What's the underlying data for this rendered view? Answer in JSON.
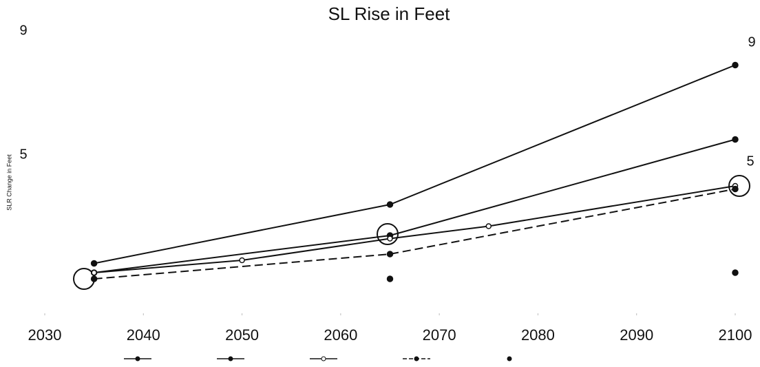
{
  "chart_data": {
    "type": "line",
    "title": "SL Rise in Feet",
    "y_label": "SLR Change in Feet",
    "xlim": [
      2030,
      2100
    ],
    "xticks": [
      2030,
      2040,
      2050,
      2060,
      2070,
      2080,
      2090,
      2100
    ],
    "ylim": [
      0,
      9
    ],
    "yticks": [
      5,
      9
    ],
    "annotations": [
      "9",
      "5"
    ],
    "series": [
      {
        "color": "#111111",
        "marker": "dot",
        "line": "solid",
        "x": [
          2035,
          2065,
          2100
        ],
        "values": [
          1.5,
          3.4,
          7.9
        ]
      },
      {
        "color": "#111111",
        "marker": "dot",
        "line": "solid",
        "x": [
          2035,
          2065,
          2100
        ],
        "values": [
          1.2,
          2.4,
          5.5
        ]
      },
      {
        "color": "#111111",
        "marker": "open",
        "line": "solid",
        "x": [
          2035,
          2050,
          2065,
          2075,
          2100
        ],
        "values": [
          1.2,
          1.6,
          2.3,
          2.7,
          4.0
        ]
      },
      {
        "color": "#111111",
        "marker": "dot",
        "line": "dash",
        "x": [
          2035,
          2065,
          2100
        ],
        "values": [
          1.0,
          1.8,
          3.9
        ]
      },
      {
        "color": "#111111",
        "marker": "dot",
        "line": "none",
        "x": [
          2065,
          2100
        ],
        "values": [
          1.0,
          1.2
        ]
      }
    ]
  }
}
